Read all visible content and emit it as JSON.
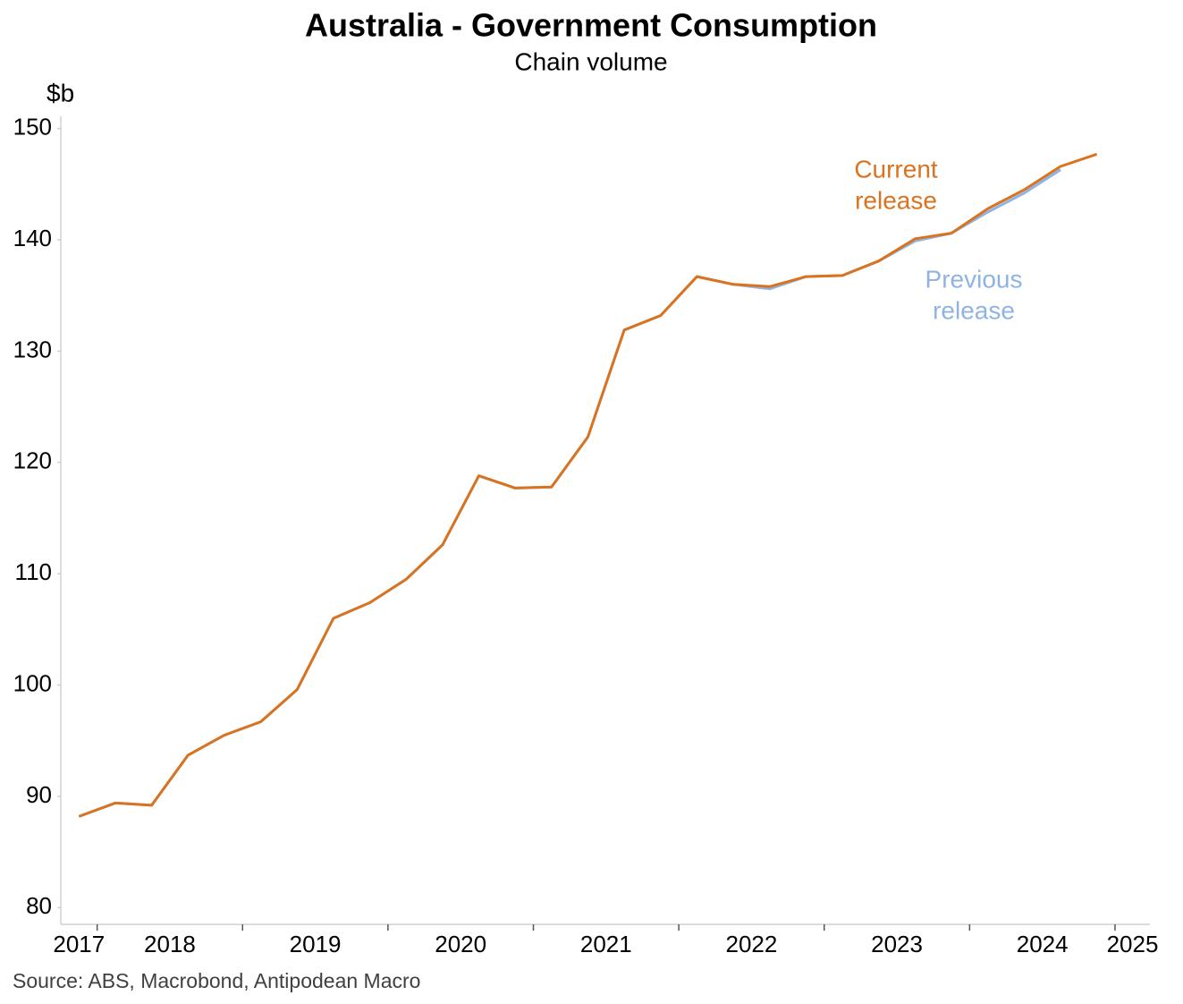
{
  "chart_data": {
    "type": "line",
    "title": "Australia - Government Consumption",
    "subtitle": "Chain volume",
    "y_label": "$b",
    "source": "Source: ABS, Macrobond, Antipodean Macro",
    "x": [
      2017.875,
      2018.125,
      2018.375,
      2018.625,
      2018.875,
      2019.125,
      2019.375,
      2019.625,
      2019.875,
      2020.125,
      2020.375,
      2020.625,
      2020.875,
      2021.125,
      2021.375,
      2021.625,
      2021.875,
      2022.125,
      2022.375,
      2022.625,
      2022.875,
      2023.125,
      2023.375,
      2023.625,
      2023.875,
      2024.125,
      2024.375,
      2024.625,
      2024.875
    ],
    "series": [
      {
        "name": "Previous release",
        "color": "#8fb4e3",
        "values": [
          88.2,
          89.4,
          89.2,
          93.7,
          95.5,
          96.7,
          99.6,
          106.0,
          107.4,
          109.5,
          112.6,
          118.8,
          117.7,
          117.8,
          122.3,
          131.9,
          133.2,
          136.7,
          136.0,
          135.6,
          136.7,
          136.8,
          138.1,
          139.9,
          140.6,
          142.5,
          144.2,
          146.3,
          null
        ]
      },
      {
        "name": "Current release",
        "color": "#d9731f",
        "values": [
          88.2,
          89.4,
          89.2,
          93.7,
          95.5,
          96.7,
          99.6,
          106.0,
          107.4,
          109.5,
          112.6,
          118.8,
          117.7,
          117.8,
          122.3,
          131.9,
          133.2,
          136.7,
          136.0,
          135.8,
          136.7,
          136.8,
          138.1,
          140.1,
          140.6,
          142.8,
          144.5,
          146.6,
          147.7
        ]
      }
    ],
    "annotations": [
      [
        "Previous",
        "release"
      ],
      [
        "Current",
        "release"
      ]
    ],
    "xlim": [
      2017.75,
      2025.24
    ],
    "xticks": [
      2017,
      2018,
      2019,
      2020,
      2021,
      2022,
      2023,
      2024,
      2025
    ],
    "ylim": [
      78.5,
      151.1
    ],
    "yticks": [
      80,
      90,
      100,
      110,
      120,
      130,
      140,
      150
    ],
    "grid": false
  }
}
